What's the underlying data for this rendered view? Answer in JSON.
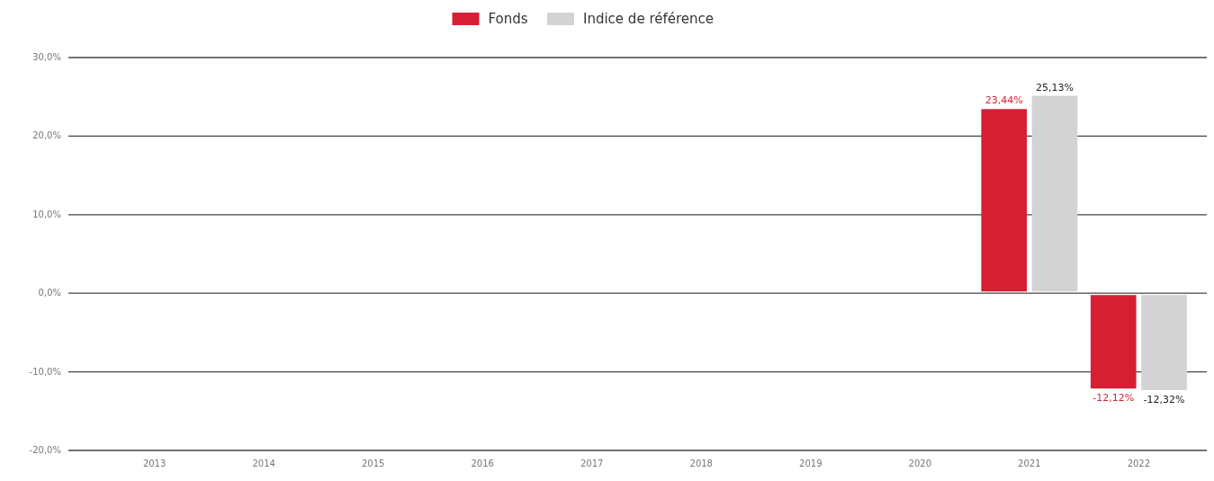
{
  "chart_data": {
    "type": "bar",
    "categories": [
      "2013",
      "2014",
      "2015",
      "2016",
      "2017",
      "2018",
      "2019",
      "2020",
      "2021",
      "2022"
    ],
    "series": [
      {
        "name": "Fonds",
        "color": "#d71f33",
        "values": [
          null,
          null,
          null,
          null,
          null,
          null,
          null,
          null,
          23.44,
          -12.12
        ],
        "value_labels": [
          null,
          null,
          null,
          null,
          null,
          null,
          null,
          null,
          "23,44%",
          "-12,12%"
        ]
      },
      {
        "name": "Indice de référence",
        "color": "#d3d3d3",
        "values": [
          null,
          null,
          null,
          null,
          null,
          null,
          null,
          null,
          25.13,
          -12.32
        ],
        "value_labels": [
          null,
          null,
          null,
          null,
          null,
          null,
          null,
          null,
          "25,13%",
          "-12,32%"
        ]
      }
    ],
    "ylim": [
      -20,
      30
    ],
    "yticks": [
      {
        "value": -20,
        "label": "-20,0%"
      },
      {
        "value": -10,
        "label": "-10,0%"
      },
      {
        "value": 0,
        "label": "0,0%"
      },
      {
        "value": 10,
        "label": "10,0%"
      },
      {
        "value": 20,
        "label": "20,0%"
      },
      {
        "value": 30,
        "label": "30,0%"
      }
    ],
    "grid": "y",
    "legend": "top"
  }
}
